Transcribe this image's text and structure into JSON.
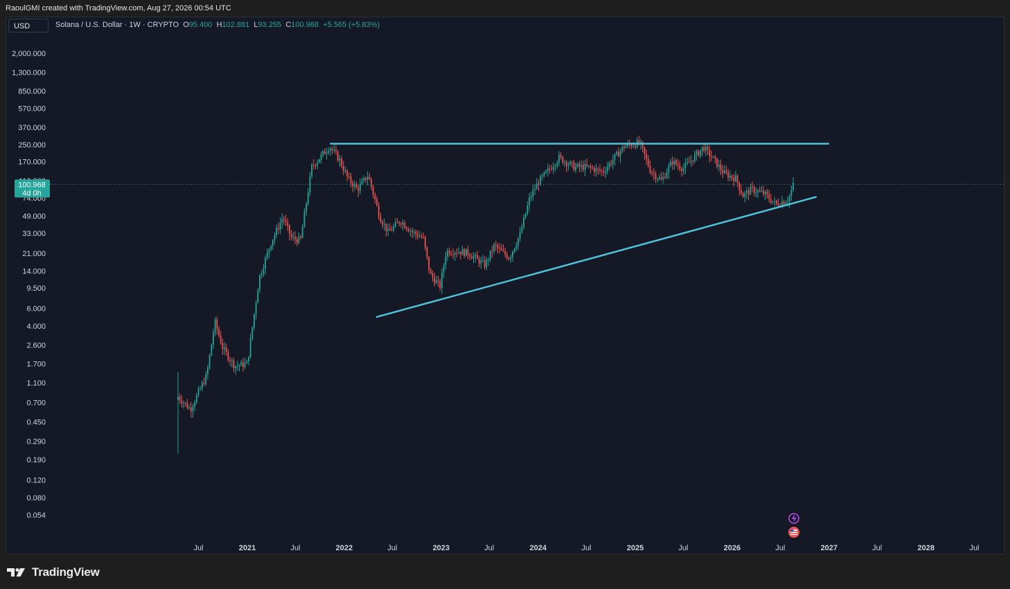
{
  "header": {
    "credit": "RaoulGMI created with TradingView.com, Aug 27, 2026 00:54 UTC"
  },
  "toolbar": {
    "currency": "USD"
  },
  "legend": {
    "symbol": "Solana / U.S. Dollar · 1W · CRYPTO",
    "o_label": "O",
    "o_value": "95.400",
    "h_label": "H",
    "h_value": "102.881",
    "l_label": "L",
    "l_value": "93.255",
    "c_label": "C",
    "c_value": "100.968",
    "change": "+5.565 (+5.83%)"
  },
  "price_tag": {
    "price": "100.968",
    "countdown": "4d 0h"
  },
  "footer": {
    "brand": "TradingView"
  },
  "colors": {
    "up": "#26a69a",
    "down": "#ef5350",
    "trendline": "#4fc3dc",
    "background": "#141925",
    "tag": "#26a69a"
  },
  "chart_data": {
    "type": "candlestick",
    "title": "Solana / U.S. Dollar · 1W · CRYPTO",
    "y_scale": "log",
    "grid": false,
    "y_ticks": [
      "2,000.000",
      "1,300.000",
      "850.000",
      "570.000",
      "370.000",
      "250.000",
      "170.000",
      "110.000",
      "74.000",
      "49.000",
      "33.000",
      "21.000",
      "14.000",
      "9.500",
      "6.000",
      "4.000",
      "2.600",
      "1.700",
      "1.100",
      "0.700",
      "0.450",
      "0.290",
      "0.190",
      "0.120",
      "0.080",
      "0.054"
    ],
    "x_ticks": [
      "Jul",
      "2021",
      "Jul",
      "2022",
      "Jul",
      "2023",
      "Jul",
      "2024",
      "Jul",
      "2025",
      "Jul",
      "2026",
      "Jul",
      "2027",
      "Jul",
      "2028",
      "Jul"
    ],
    "price_path": [
      [
        "2020-04-15",
        0.8
      ],
      [
        "2020-06-01",
        0.6
      ],
      [
        "2020-08-01",
        1.3
      ],
      [
        "2020-09-01",
        4.4
      ],
      [
        "2020-10-01",
        2.4
      ],
      [
        "2020-11-15",
        1.6
      ],
      [
        "2021-01-01",
        1.7
      ],
      [
        "2021-02-15",
        12
      ],
      [
        "2021-04-01",
        27
      ],
      [
        "2021-05-15",
        48
      ],
      [
        "2021-06-15",
        30
      ],
      [
        "2021-07-20",
        28
      ],
      [
        "2021-09-01",
        150
      ],
      [
        "2021-11-07",
        240
      ],
      [
        "2021-12-15",
        175
      ],
      [
        "2022-01-15",
        115
      ],
      [
        "2022-02-20",
        90
      ],
      [
        "2022-04-01",
        125
      ],
      [
        "2022-05-15",
        48
      ],
      [
        "2022-06-15",
        34
      ],
      [
        "2022-08-01",
        44
      ],
      [
        "2022-09-15",
        34
      ],
      [
        "2022-10-25",
        30
      ],
      [
        "2022-11-20",
        13
      ],
      [
        "2022-12-28",
        9.9
      ],
      [
        "2023-01-20",
        22
      ],
      [
        "2023-03-01",
        22
      ],
      [
        "2023-04-15",
        21
      ],
      [
        "2023-06-15",
        16
      ],
      [
        "2023-07-20",
        25
      ],
      [
        "2023-09-15",
        19
      ],
      [
        "2023-10-25",
        32
      ],
      [
        "2023-12-01",
        75
      ],
      [
        "2024-01-01",
        105
      ],
      [
        "2024-03-20",
        185
      ],
      [
        "2024-05-15",
        150
      ],
      [
        "2024-07-01",
        150
      ],
      [
        "2024-09-01",
        135
      ],
      [
        "2024-11-20",
        240
      ],
      [
        "2025-01-18",
        260
      ],
      [
        "2025-03-01",
        135
      ],
      [
        "2025-04-10",
        110
      ],
      [
        "2025-05-20",
        170
      ],
      [
        "2025-07-01",
        145
      ],
      [
        "2025-09-15",
        235
      ],
      [
        "2025-10-15",
        190
      ],
      [
        "2025-12-01",
        130
      ],
      [
        "2026-01-15",
        115
      ],
      [
        "2026-02-10",
        78
      ],
      [
        "2026-03-15",
        90
      ],
      [
        "2026-05-01",
        82
      ],
      [
        "2026-06-15",
        64
      ],
      [
        "2026-08-01",
        72
      ],
      [
        "2026-08-20",
        101
      ]
    ],
    "last_close": 100.968,
    "annotations": [
      {
        "type": "horizontal-resistance",
        "price": 255,
        "from": "2021-11-08",
        "to": "2027-01-01"
      },
      {
        "type": "rising-support",
        "from": [
          "2022-05-01",
          4.9
        ],
        "to": [
          "2026-11-15",
          76
        ]
      }
    ]
  }
}
